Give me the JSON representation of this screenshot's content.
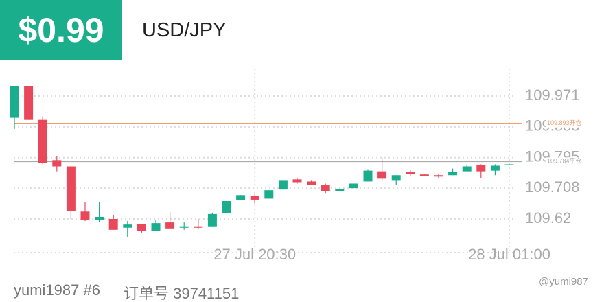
{
  "header": {
    "price": "$0.99",
    "symbol": "USD/JPY"
  },
  "footer": {
    "user": "yumi1987 #6",
    "order": "订单号 39741151",
    "watermark": "@yumi987"
  },
  "chart_data": {
    "type": "candlestick",
    "categories": [
      null,
      null,
      null,
      null,
      null,
      null,
      null,
      null,
      null,
      null,
      null,
      null,
      null,
      null,
      null,
      null,
      null,
      "27 Jul 20:30",
      null,
      null,
      null,
      null,
      null,
      null,
      null,
      null,
      null,
      null,
      null,
      null,
      null,
      null,
      null,
      null,
      null,
      "28 Jul 01:00"
    ],
    "open": [
      109.909,
      110.0,
      109.903,
      109.788,
      109.77,
      109.641,
      109.616,
      109.62,
      109.595,
      109.606,
      109.585,
      109.61,
      109.595,
      109.599,
      109.599,
      109.636,
      109.673,
      109.686,
      109.678,
      109.704,
      109.733,
      109.727,
      109.716,
      109.7,
      109.708,
      109.727,
      109.756,
      109.731,
      109.755,
      109.747,
      109.745,
      109.745,
      109.756,
      109.774,
      109.758,
      109.774
    ],
    "high": [
      110.0,
      110.0,
      109.913,
      109.799,
      109.77,
      109.667,
      109.669,
      109.632,
      109.614,
      109.606,
      109.616,
      109.64,
      109.61,
      109.62,
      109.638,
      109.671,
      109.688,
      109.69,
      109.702,
      109.731,
      109.737,
      109.731,
      109.721,
      109.706,
      109.721,
      109.762,
      109.794,
      109.745,
      109.76,
      109.747,
      109.749,
      109.764,
      109.774,
      109.776,
      109.776,
      109.776
    ],
    "low": [
      109.877,
      109.903,
      109.776,
      109.756,
      109.62,
      109.614,
      109.61,
      109.589,
      109.569,
      109.581,
      109.585,
      109.593,
      109.589,
      109.591,
      109.599,
      109.636,
      109.673,
      109.663,
      109.678,
      109.704,
      109.721,
      109.718,
      109.694,
      109.7,
      109.708,
      109.727,
      109.731,
      109.718,
      109.741,
      109.743,
      109.737,
      109.745,
      109.756,
      109.737,
      109.745,
      109.774
    ],
    "close": [
      110.0,
      109.903,
      109.78,
      109.77,
      109.643,
      109.618,
      109.626,
      109.589,
      109.604,
      109.585,
      109.608,
      109.593,
      109.599,
      109.595,
      109.634,
      109.671,
      109.688,
      109.675,
      109.702,
      109.731,
      109.725,
      109.718,
      109.7,
      109.706,
      109.721,
      109.758,
      109.735,
      109.745,
      109.749,
      109.743,
      109.741,
      109.755,
      109.77,
      109.756,
      109.772,
      109.776
    ],
    "up_color": "#1aae8c",
    "down_color": "#e8485a",
    "ylim": [
      109.52,
      110.02
    ],
    "yticks": [
      109.62,
      109.708,
      109.795,
      109.883,
      109.971
    ],
    "grid": true,
    "reference_lines": [
      {
        "value": 109.893,
        "label": "109.893开仓",
        "color": "#f0a070"
      },
      {
        "value": 109.784,
        "label": "109.784平仓",
        "color": "#aaaaaa"
      }
    ]
  }
}
